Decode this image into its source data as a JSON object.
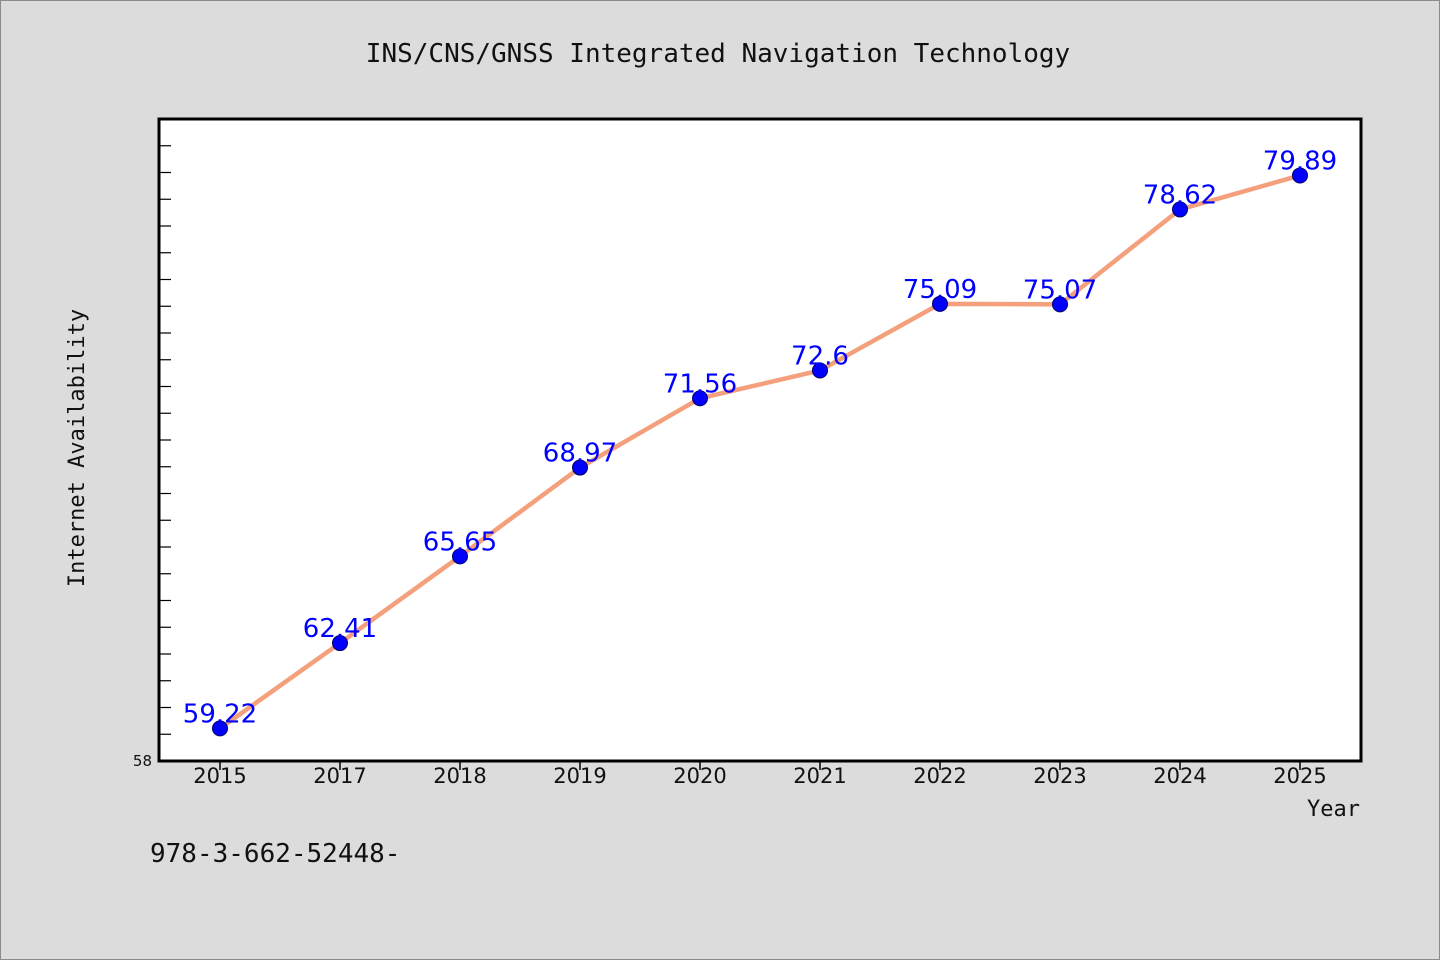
{
  "chart_data": {
    "type": "line",
    "title": "INS/CNS/GNSS Integrated Navigation Technology",
    "xlabel": "Year",
    "ylabel": "Internet Availability",
    "categories": [
      "2015",
      "2017",
      "2018",
      "2019",
      "2020",
      "2021",
      "2022",
      "2023",
      "2024",
      "2025"
    ],
    "values": [
      59.22,
      62.41,
      65.65,
      68.97,
      71.56,
      72.6,
      75.09,
      75.07,
      78.62,
      79.89
    ],
    "data_labels": [
      "59.22",
      "62.41",
      "65.65",
      "68.97",
      "71.56",
      "72.6",
      "75.09",
      "75.07",
      "78.62",
      "79.89"
    ],
    "ylim": [
      58,
      82
    ],
    "y_min_label": "58",
    "grid": false,
    "line_color": "#f4a07c",
    "marker_color": "#0000ff",
    "label_color": "#0000ff"
  },
  "footer": {
    "isbn": "978-3-662-52448-"
  }
}
